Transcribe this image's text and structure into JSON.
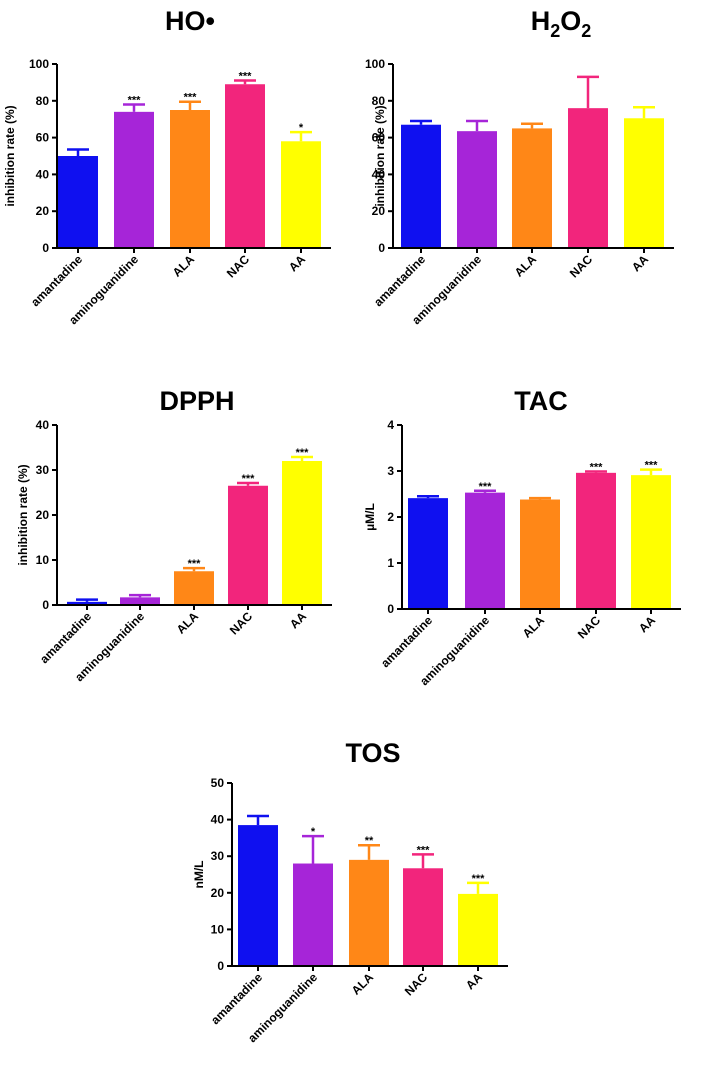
{
  "colors": {
    "amantadine": "#0f10f0",
    "aminoguanidine": "#a625d8",
    "ALA": "#ff8717",
    "NAC": "#f2257c",
    "AA": "#ffff00"
  },
  "chart_data": [
    {
      "type": "bar",
      "title": "HO•",
      "xlabel": "",
      "ylabel": "inhibition rate (%)",
      "categories": [
        "amantadine",
        "aminoguanidine",
        "ALA",
        "NAC",
        "AA"
      ],
      "values": [
        50,
        74,
        75,
        89,
        58
      ],
      "errors": [
        3.5,
        4,
        4.5,
        2,
        5
      ],
      "significance": [
        "",
        "***",
        "***",
        "***",
        "*"
      ],
      "ylim": [
        0,
        100
      ],
      "yticks": [
        0,
        20,
        40,
        60,
        80,
        100
      ],
      "ytick_labels": [
        "0",
        "20",
        "40",
        "60",
        "80",
        "100"
      ]
    },
    {
      "type": "bar",
      "title": "H2O2",
      "title_parts": {
        "base": "H",
        "sub1": "2",
        "mid": "O",
        "sub2": "2"
      },
      "xlabel": "",
      "ylabel": "inhibition rate (%)",
      "categories": [
        "amantadine",
        "aminoguanidine",
        "ALA",
        "NAC",
        "AA"
      ],
      "values": [
        67,
        63.5,
        65,
        76,
        70.5
      ],
      "errors": [
        2,
        5.5,
        2.5,
        17,
        6
      ],
      "significance": [
        "",
        "",
        "",
        "",
        ""
      ],
      "ylim": [
        0,
        100
      ],
      "yticks": [
        0,
        20,
        40,
        60,
        80,
        100
      ],
      "ytick_labels": [
        "0",
        "20",
        "40",
        "60",
        "80",
        "100"
      ]
    },
    {
      "type": "bar",
      "title": "DPPH",
      "xlabel": "",
      "ylabel": "inhibition rate (%)",
      "categories": [
        "amantadine",
        "aminoguanidine",
        "ALA",
        "NAC",
        "AA"
      ],
      "values": [
        0.7,
        1.7,
        7.5,
        26.5,
        32
      ],
      "errors": [
        0.5,
        0.5,
        0.7,
        0.6,
        0.9
      ],
      "significance": [
        "",
        "",
        "***",
        "***",
        "***"
      ],
      "ylim": [
        0,
        40
      ],
      "yticks": [
        0,
        10,
        20,
        30,
        40
      ],
      "ytick_labels": [
        "0",
        "10",
        "20",
        "30",
        "40"
      ]
    },
    {
      "type": "bar",
      "title": "TAC",
      "xlabel": "",
      "ylabel": "µM/L",
      "categories": [
        "amantadine",
        "aminoguanidine",
        "ALA",
        "NAC",
        "AA"
      ],
      "values": [
        2.41,
        2.53,
        2.38,
        2.96,
        2.91
      ],
      "errors": [
        0.04,
        0.04,
        0.03,
        0.03,
        0.12
      ],
      "significance": [
        "",
        "***",
        "",
        "***",
        "***"
      ],
      "ylim": [
        0,
        4
      ],
      "yticks": [
        0,
        1,
        2,
        3,
        4
      ],
      "ytick_labels": [
        "0",
        "1",
        "2",
        "3",
        "4"
      ]
    },
    {
      "type": "bar",
      "title": "TOS",
      "xlabel": "",
      "ylabel": "nM/L",
      "categories": [
        "amantadine",
        "aminoguanidine",
        "ALA",
        "NAC",
        "AA"
      ],
      "values": [
        38.5,
        28,
        29,
        26.7,
        19.7
      ],
      "errors": [
        2.5,
        7.5,
        4,
        3.8,
        3
      ],
      "significance": [
        "",
        "*",
        "**",
        "***",
        "***"
      ],
      "ylim": [
        0,
        50
      ],
      "yticks": [
        0,
        10,
        20,
        30,
        40,
        50
      ],
      "ytick_labels": [
        "0",
        "10",
        "20",
        "30",
        "40",
        "50"
      ]
    }
  ]
}
